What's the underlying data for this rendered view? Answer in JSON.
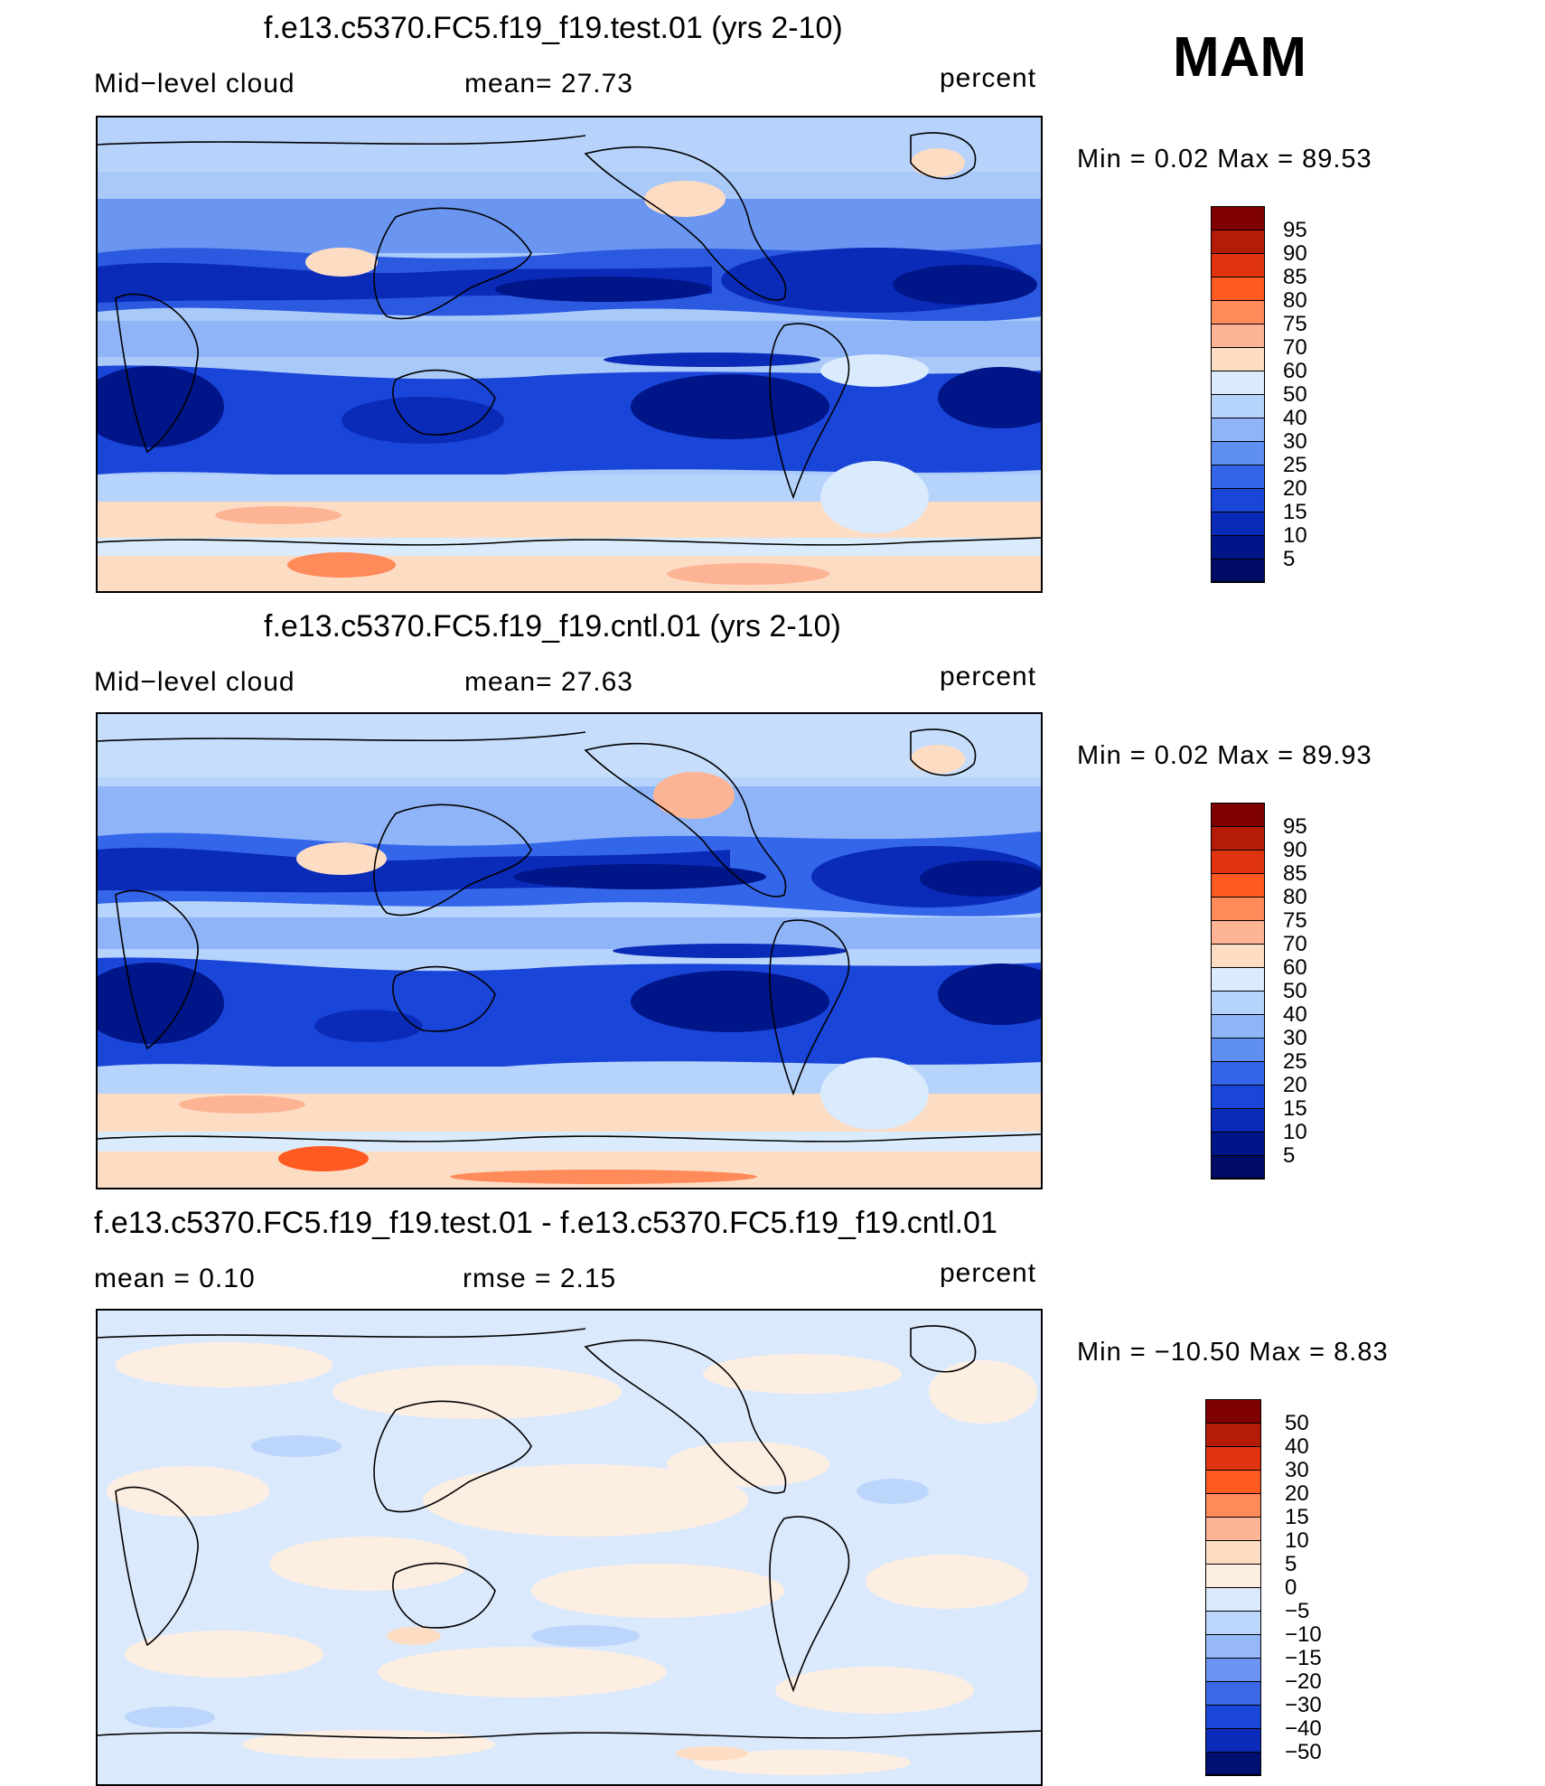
{
  "season": "MAM",
  "panels": [
    {
      "title": "f.e13.c5370.FC5.f19_f19.test.01 (yrs 2-10)",
      "left_label": "Mid−level  cloud",
      "center_label": "mean=   27.73",
      "right_label": "percent",
      "min_max": "Min  =      0.02  Max  =     89.53",
      "colorbar_labels": [
        "95",
        "90",
        "85",
        "80",
        "75",
        "70",
        "60",
        "50",
        "40",
        "30",
        "25",
        "20",
        "15",
        "10",
        "5"
      ],
      "colors": [
        "#7f0000",
        "#b41c08",
        "#e03410",
        "#ff5a22",
        "#ff8a5a",
        "#fdb495",
        "#fddcc4",
        "#d9ebfc",
        "#b6d3fb",
        "#8fb5f8",
        "#5f8ff3",
        "#3466ea",
        "#1a45d9",
        "#0a2bb8",
        "#001588",
        "#000c66"
      ]
    },
    {
      "title": "f.e13.c5370.FC5.f19_f19.cntl.01 (yrs 2-10)",
      "left_label": "Mid−level  cloud",
      "center_label": "mean=   27.63",
      "right_label": "percent",
      "min_max": "Min  =      0.02  Max  =     89.93",
      "colorbar_labels": [
        "95",
        "90",
        "85",
        "80",
        "75",
        "70",
        "60",
        "50",
        "40",
        "30",
        "25",
        "20",
        "15",
        "10",
        "5"
      ],
      "colors": [
        "#7f0000",
        "#b41c08",
        "#e03410",
        "#ff5a22",
        "#ff8a5a",
        "#fdb495",
        "#fddcc4",
        "#d9ebfc",
        "#b6d3fb",
        "#8fb5f8",
        "#5f8ff3",
        "#3466ea",
        "#1a45d9",
        "#0a2bb8",
        "#001588",
        "#000c66"
      ]
    },
    {
      "title": "f.e13.c5370.FC5.f19_f19.test.01 - f.e13.c5370.FC5.f19_f19.cntl.01",
      "left_label": "mean  =     0.10",
      "center_label": "rmse  =     2.15",
      "right_label": "percent",
      "min_max": "Min  =  −10.50  Max  =       8.83",
      "colorbar_labels": [
        "50",
        "40",
        "30",
        "20",
        "15",
        "10",
        "5",
        "0",
        "−5",
        "−10",
        "−15",
        "−20",
        "−30",
        "−40",
        "−50"
      ],
      "colors": [
        "#7f0000",
        "#b41c08",
        "#e03410",
        "#ff5a22",
        "#ff8a5a",
        "#fdb495",
        "#fddcc4",
        "#fdeee2",
        "#dbe9fc",
        "#bcd5fb",
        "#97b8f8",
        "#6b93f2",
        "#3c68e6",
        "#1a45d9",
        "#0a2bb8",
        "#001070"
      ]
    }
  ]
}
